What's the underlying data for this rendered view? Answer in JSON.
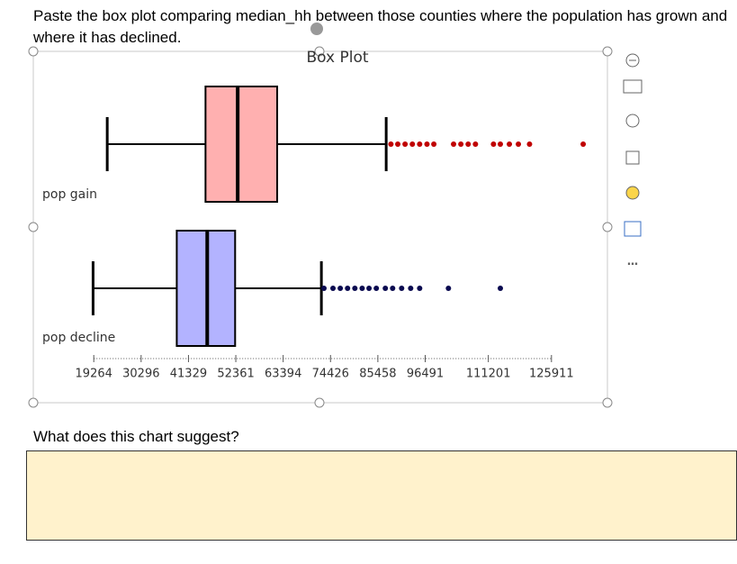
{
  "question": "Paste the box plot comparing median_hh between those counties where the population has grown and where it has declined.",
  "prompt": "What does this chart suggest?",
  "chart_data": {
    "type": "box",
    "title": "Box Plot",
    "categories": [
      "pop gain",
      "pop decline"
    ],
    "boxes": [
      {
        "color": "#ffb0b0",
        "outlier_color": "#c00000",
        "whisker_low": 22400,
        "q1": 45300,
        "median": 52800,
        "q3": 62000,
        "whisker_high": 87400,
        "outliers": [
          88500,
          90100,
          91800,
          93500,
          95200,
          96900,
          98500,
          103100,
          104800,
          106500,
          108200,
          112400,
          114000,
          116100,
          118200,
          120800,
          133300
        ]
      },
      {
        "color": "#b3b3ff",
        "outlier_color": "#0a0a50",
        "whisker_low": 19100,
        "q1": 38600,
        "median": 45700,
        "q3": 52200,
        "whisker_high": 72300,
        "outliers": [
          72900,
          75000,
          76700,
          78400,
          80100,
          81800,
          83400,
          85100,
          87200,
          88900,
          91000,
          93100,
          95200,
          101900,
          114000
        ]
      }
    ],
    "xlim": [
      5800,
      137900
    ],
    "xticks": [
      19264,
      30296,
      41329,
      52361,
      63394,
      74426,
      85458,
      96491,
      111201,
      125911
    ]
  }
}
